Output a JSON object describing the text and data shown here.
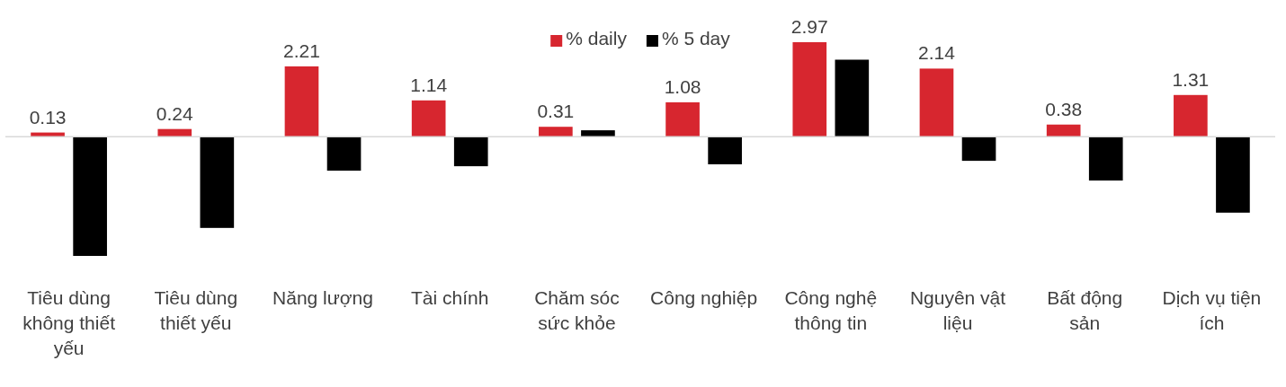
{
  "chart_data": {
    "type": "bar",
    "categories": [
      "Tiêu dùng không thiết yếu",
      "Tiêu dùng thiết yếu",
      "Năng lượng",
      "Tài chính",
      "Chăm sóc sức khỏe",
      "Công nghiệp",
      "Công nghệ thông tin",
      "Nguyên vật liệu",
      "Bất động sản",
      "Dịch vụ tiện ích"
    ],
    "series": [
      {
        "name": "% daily",
        "color": "#d7262f",
        "values": [
          0.13,
          0.24,
          2.21,
          1.14,
          0.31,
          1.08,
          2.97,
          2.14,
          0.38,
          1.31
        ],
        "value_labels": [
          "0.13",
          "0.24",
          "2.21",
          "1.14",
          "0.31",
          "1.08",
          "2.97",
          "2.14",
          "0.38",
          "1.31"
        ]
      },
      {
        "name": "% 5 day",
        "color": "#000000",
        "values": [
          -3.75,
          -2.87,
          -1.07,
          -0.93,
          0.2,
          -0.87,
          2.42,
          -0.76,
          -1.38,
          -2.39
        ]
      }
    ],
    "tick_labels": "x",
    "legend": "top"
  }
}
